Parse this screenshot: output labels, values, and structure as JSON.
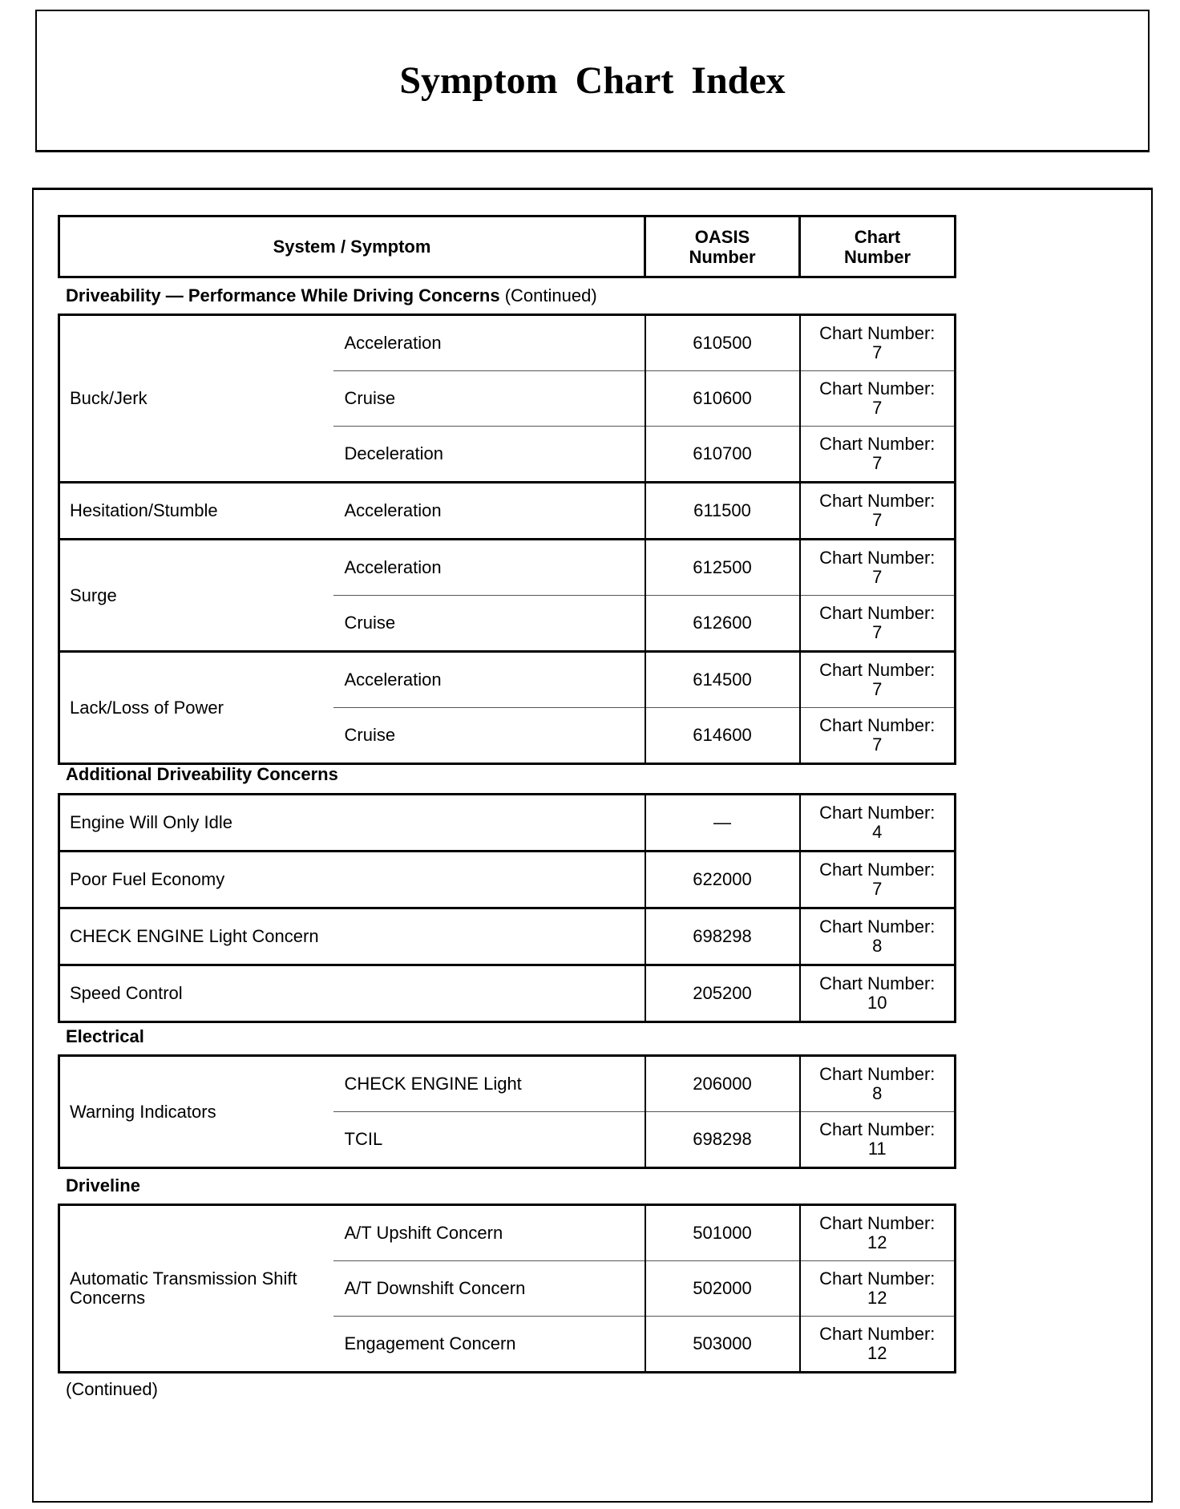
{
  "title": "Symptom Chart Index",
  "header": {
    "system_symptom": "System / Symptom",
    "oasis": "OASIS Number",
    "chart": "Chart Number"
  },
  "chart_label": "Chart Number:",
  "sections": [
    {
      "label": "Driveability — Performance While Driving Concerns",
      "suffix": " (Continued)",
      "groups": [
        {
          "system": "Buck/Jerk",
          "rows": [
            {
              "symptom": "Acceleration",
              "oasis": "610500",
              "chart": "7"
            },
            {
              "symptom": "Cruise",
              "oasis": "610600",
              "chart": "7"
            },
            {
              "symptom": "Deceleration",
              "oasis": "610700",
              "chart": "7"
            }
          ]
        },
        {
          "system": "Hesitation/Stumble",
          "rows": [
            {
              "symptom": "Acceleration",
              "oasis": "611500",
              "chart": "7"
            }
          ]
        },
        {
          "system": "Surge",
          "rows": [
            {
              "symptom": "Acceleration",
              "oasis": "612500",
              "chart": "7"
            },
            {
              "symptom": "Cruise",
              "oasis": "612600",
              "chart": "7"
            }
          ]
        },
        {
          "system": "Lack/Loss of Power",
          "rows": [
            {
              "symptom": "Acceleration",
              "oasis": "614500",
              "chart": "7"
            },
            {
              "symptom": "Cruise",
              "oasis": "614600",
              "chart": "7"
            }
          ]
        }
      ]
    },
    {
      "label": "Additional Driveability Concerns",
      "suffix": "",
      "groups": [
        {
          "system": "Engine Will Only Idle",
          "rows": [
            {
              "symptom": "",
              "oasis": "—",
              "chart": "4"
            }
          ]
        },
        {
          "system": "Poor Fuel Economy",
          "rows": [
            {
              "symptom": "",
              "oasis": "622000",
              "chart": "7"
            }
          ]
        },
        {
          "system": "CHECK ENGINE Light Concern",
          "rows": [
            {
              "symptom": "",
              "oasis": "698298",
              "chart": "8"
            }
          ]
        },
        {
          "system": "Speed Control",
          "rows": [
            {
              "symptom": "",
              "oasis": "205200",
              "chart": "10"
            }
          ]
        }
      ]
    },
    {
      "label": "Electrical",
      "suffix": "",
      "groups": [
        {
          "system": "Warning Indicators",
          "rows": [
            {
              "symptom": "CHECK ENGINE Light",
              "oasis": "206000",
              "chart": "8"
            },
            {
              "symptom": "TCIL",
              "oasis": "698298",
              "chart": "11"
            }
          ]
        }
      ]
    },
    {
      "label": "Driveline",
      "suffix": "",
      "groups": [
        {
          "system": "Automatic Transmission Shift Concerns",
          "rows": [
            {
              "symptom": "A/T Upshift Concern",
              "oasis": "501000",
              "chart": "12"
            },
            {
              "symptom": "A/T Downshift Concern",
              "oasis": "502000",
              "chart": "12"
            },
            {
              "symptom": "Engagement Concern",
              "oasis": "503000",
              "chart": "12"
            }
          ]
        }
      ]
    }
  ],
  "footer": "(Continued)"
}
